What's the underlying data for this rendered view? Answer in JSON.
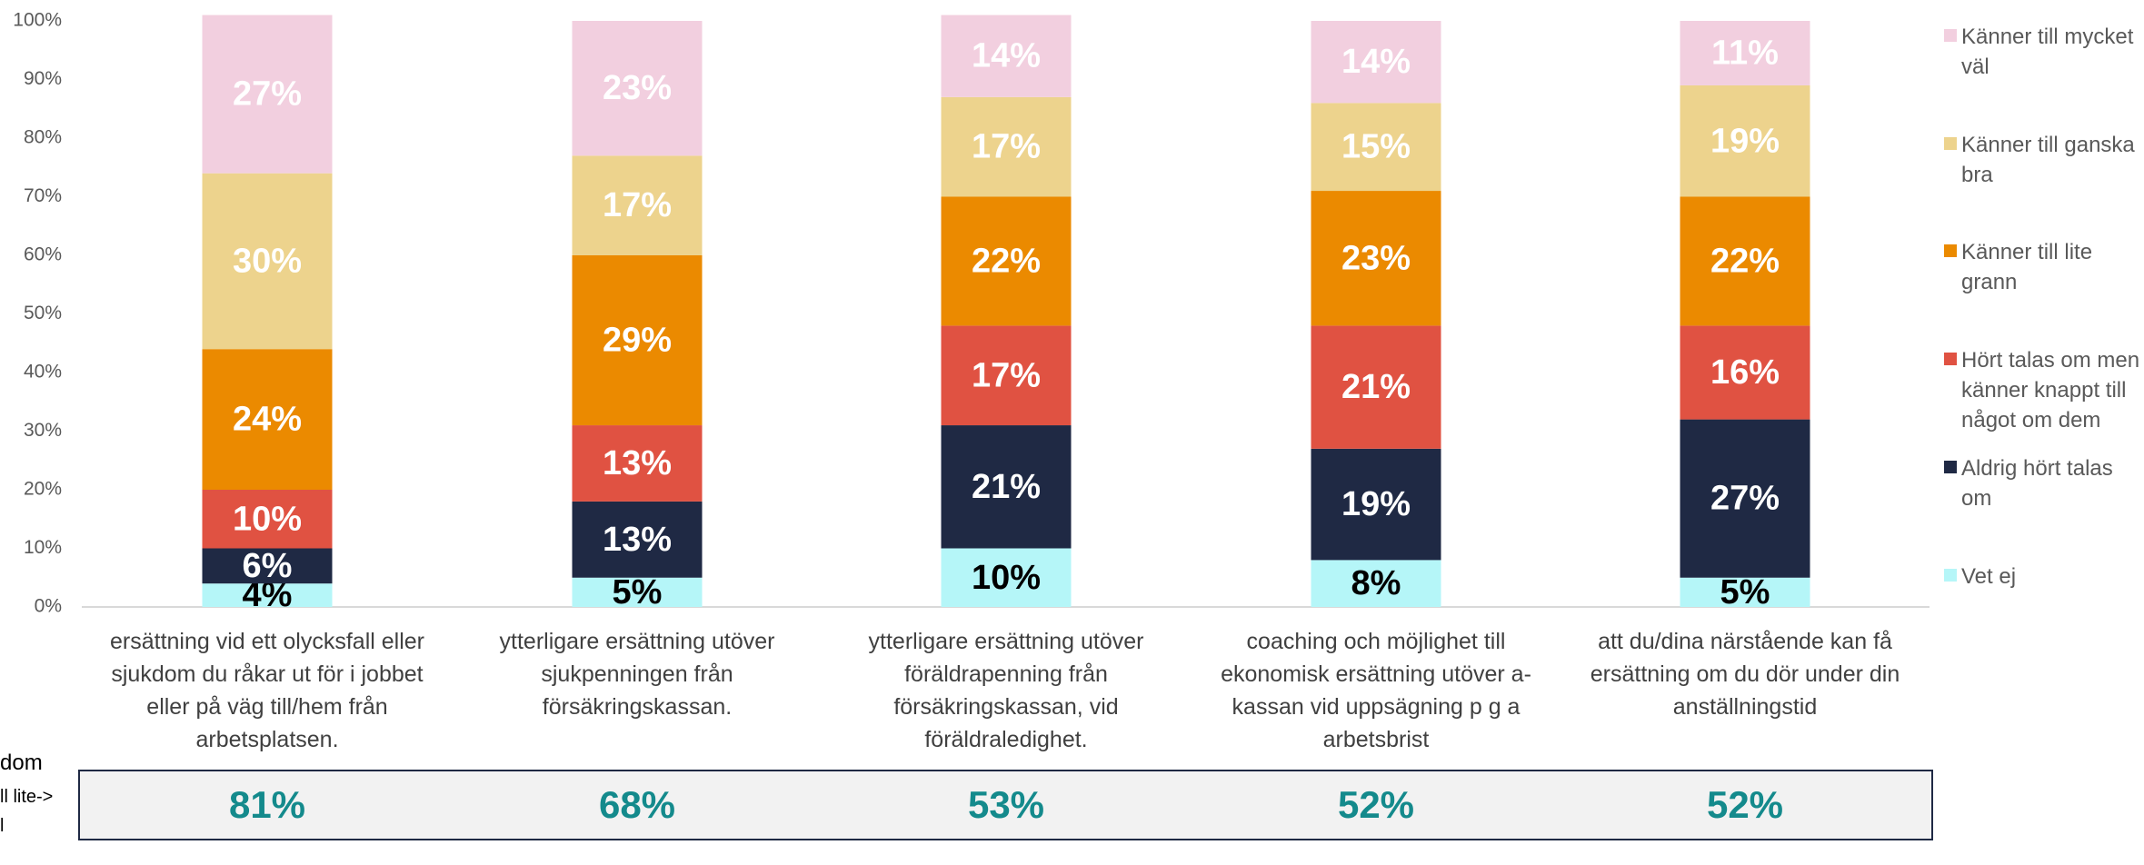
{
  "chart_data": {
    "type": "stacked_bar",
    "categories": [
      "ersättning vid ett olycksfall eller sjukdom du råkar ut för i jobbet eller på väg till/hem från arbetsplatsen.",
      "ytterligare ersättning utöver sjukpenningen från försäkringskassan.",
      "ytterligare ersättning utöver föräldrapenning från försäkringskassan, vid föräldraledighet.",
      "coaching och möjlighet till ekonomisk ersättning utöver a-kassan vid uppsägning p g a arbetsbrist",
      "att du/dina närstående kan få ersättning om du dör under din anställningstid"
    ],
    "series": [
      {
        "name": "Vet ej",
        "color": "#b5f6f8",
        "label_color": "#000000",
        "values": [
          4,
          5,
          10,
          8,
          5
        ],
        "value_labels": [
          "4%",
          "5%",
          "10%",
          "8%",
          "5%"
        ]
      },
      {
        "name": "Aldrig hört talas om",
        "color": "#1f2944",
        "label_color": "#ffffff",
        "values": [
          6,
          13,
          21,
          19,
          27
        ],
        "value_labels": [
          "6%",
          "13%",
          "21%",
          "19%",
          "27%"
        ]
      },
      {
        "name": "Hört talas om men känner knappt till något om dem",
        "color": "#e05242",
        "label_color": "#ffffff",
        "values": [
          10,
          13,
          17,
          21,
          16
        ],
        "value_labels": [
          "10%",
          "13%",
          "17%",
          "21%",
          "16%"
        ]
      },
      {
        "name": "Känner till lite grann",
        "color": "#eb8a00",
        "label_color": "#ffffff",
        "values": [
          24,
          29,
          22,
          23,
          22
        ],
        "value_labels": [
          "24%",
          "29%",
          "22%",
          "23%",
          "22%"
        ]
      },
      {
        "name": "Känner till ganska bra",
        "color": "#edd38d",
        "label_color": "#ffffff",
        "values": [
          30,
          17,
          17,
          15,
          19
        ],
        "value_labels": [
          "30%",
          "17%",
          "17%",
          "15%",
          "19%"
        ]
      },
      {
        "name": "Känner till mycket väl",
        "color": "#f2cfdf",
        "label_color": "#ffffff",
        "values": [
          27,
          23,
          14,
          14,
          11
        ],
        "value_labels": [
          "27%",
          "23%",
          "14%",
          "14%",
          "11%"
        ]
      }
    ],
    "ylim": [
      0,
      100
    ],
    "yticks": [
      {
        "value": 0,
        "label": "0%"
      },
      {
        "value": 10,
        "label": "10%"
      },
      {
        "value": 20,
        "label": "20%"
      },
      {
        "value": 30,
        "label": "30%"
      },
      {
        "value": 40,
        "label": "40%"
      },
      {
        "value": 50,
        "label": "50%"
      },
      {
        "value": 60,
        "label": "60%"
      },
      {
        "value": 70,
        "label": "70%"
      },
      {
        "value": 80,
        "label": "80%"
      },
      {
        "value": 90,
        "label": "90%"
      },
      {
        "value": 100,
        "label": "100%"
      }
    ],
    "grid": false,
    "legend": "right"
  },
  "summary_row": {
    "label_fragments": [
      "dom",
      "ll lite->",
      "l"
    ],
    "cells": [
      "81%",
      "68%",
      "53%",
      "52%",
      "52%"
    ]
  }
}
